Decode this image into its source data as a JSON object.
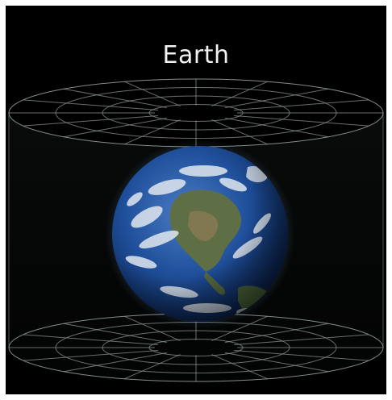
{
  "title": "Earth",
  "colors": {
    "background": "#000000",
    "grid_line": "#8a9590",
    "ocean": "#1f4f9a",
    "land": "#5f6f45",
    "cloud": "#e8edf2",
    "title_text": "#f2f2f2"
  },
  "icons": {
    "planet": "earth-globe"
  }
}
